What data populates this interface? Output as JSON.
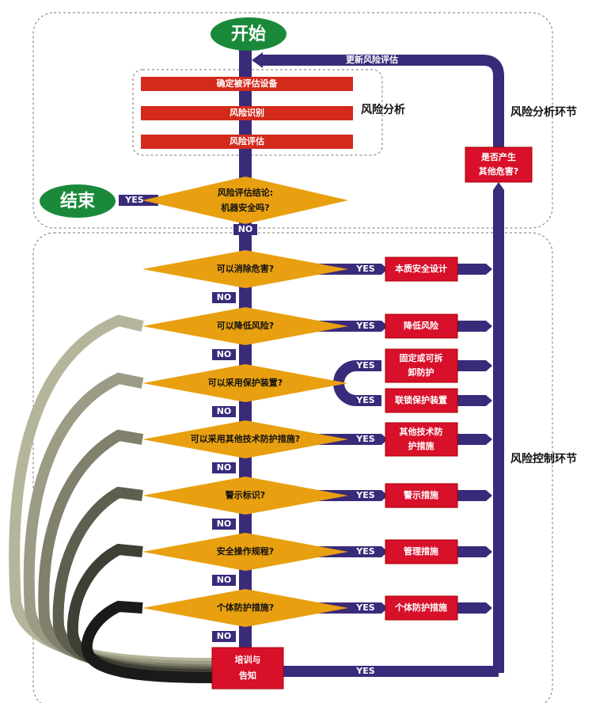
{
  "colors": {
    "flow": "#3a2a7a",
    "process": "#d42a1c",
    "decision": "#e8a010",
    "terminal": "#1a8a3a",
    "box": "#d8102a"
  },
  "start": "开始",
  "end": "结束",
  "update": "更新风险评估",
  "analysis": {
    "steps": [
      "确定被评估设备",
      "风险识别",
      "风险评估"
    ],
    "label": "风险分析"
  },
  "analysis_section": "风险分析环节",
  "control_section": "风险控制环节",
  "other_hazard": [
    "是否产生",
    "其他危害?"
  ],
  "conclusion": [
    "风险评估结论:",
    "机器安全吗?"
  ],
  "yes": "YES",
  "no": "NO",
  "decisions": [
    "可以消除危害?",
    "可以降低风险?",
    "可以采用保护装置?",
    "可以采用其他技术防护措施?",
    "警示标识?",
    "安全操作规程?",
    "个体防护措施?"
  ],
  "actions": [
    [
      "本质安全设计"
    ],
    [
      "降低风险"
    ],
    [
      "固定或可拆",
      "卸防护"
    ],
    [
      "联锁保护装置"
    ],
    [
      "其他技术防",
      "护措施"
    ],
    [
      "警示措施"
    ],
    [
      "管理措施"
    ],
    [
      "个体防护措施"
    ]
  ],
  "training": [
    "培训与",
    "告知"
  ]
}
